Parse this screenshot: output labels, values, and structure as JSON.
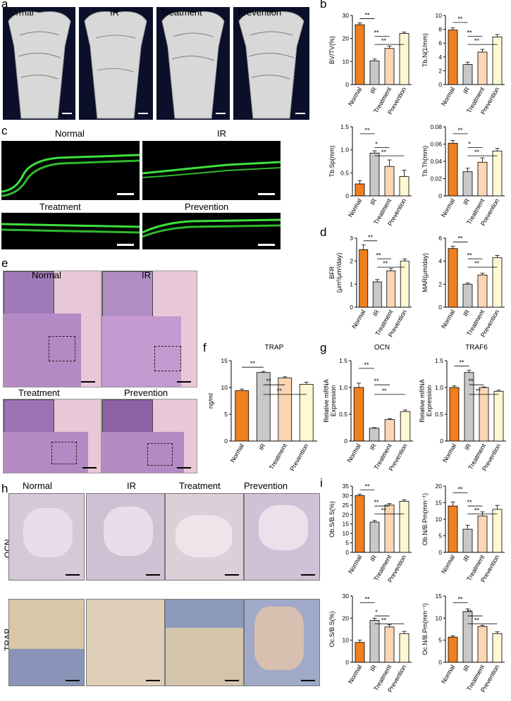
{
  "panel_labels": {
    "a": "a",
    "b": "b",
    "c": "c",
    "d": "d",
    "e": "e",
    "f": "f",
    "g": "g",
    "h": "h",
    "i": "i"
  },
  "groups": [
    "Normal",
    "IR",
    "Treatment",
    "Prevention"
  ],
  "colors": {
    "normal": "#f07f1e",
    "ir": "#c8c8c8",
    "treatment": "#fcd5b4",
    "prevention": "#fdf8d2"
  },
  "micro_ct": {
    "labels": [
      "Normal",
      "IR",
      "Treatment",
      "Prevention"
    ]
  },
  "calcein": {
    "labels": [
      "Normal",
      "IR",
      "Treatment",
      "Prevention"
    ]
  },
  "he": {
    "labels": [
      "Normal",
      "IR",
      "Treatment",
      "Prevention"
    ]
  },
  "ihc": {
    "col_labels": [
      "Normal",
      "IR",
      "Treatment",
      "Prevention"
    ],
    "row_labels": [
      "OCN",
      "TRAP"
    ]
  },
  "chart_data": [
    {
      "id": "bvtv",
      "type": "bar",
      "categories": [
        "Normal",
        "IR",
        "Treatment",
        "Prevention"
      ],
      "values": [
        26,
        10.3,
        15.7,
        22.2
      ],
      "errors": [
        0.8,
        0.8,
        1.0,
        0.6
      ],
      "ylabel": "BV/TV(%)",
      "ylim": [
        0,
        30
      ],
      "yticks": [
        "0",
        "10",
        "20",
        "30"
      ],
      "sig": [
        {
          "from": 0,
          "to": 1,
          "label": "**"
        },
        {
          "from": 1,
          "to": 2,
          "label": "**"
        },
        {
          "from": 1,
          "to": 3,
          "label": "**"
        }
      ]
    },
    {
      "id": "tbn",
      "type": "bar",
      "categories": [
        "Normal",
        "IR",
        "Treatment",
        "Prevention"
      ],
      "values": [
        7.9,
        2.9,
        4.7,
        6.9
      ],
      "errors": [
        0.3,
        0.35,
        0.4,
        0.35
      ],
      "ylabel": "Tb.N(1/mm)",
      "ylim": [
        0,
        10
      ],
      "yticks": [
        "0",
        "2",
        "4",
        "6",
        "8",
        "10"
      ],
      "sig": [
        {
          "from": 0,
          "to": 1,
          "label": "**"
        },
        {
          "from": 1,
          "to": 2,
          "label": "**"
        },
        {
          "from": 1,
          "to": 3,
          "label": "**"
        }
      ]
    },
    {
      "id": "tbsp",
      "type": "bar",
      "categories": [
        "Normal",
        "IR",
        "Treatment",
        "Prevention"
      ],
      "values": [
        0.26,
        0.93,
        0.64,
        0.42
      ],
      "errors": [
        0.07,
        0.05,
        0.14,
        0.14
      ],
      "ylabel": "Tb.Sp(mm)",
      "ylim": [
        0,
        1.5
      ],
      "yticks": [
        "0",
        "0.5",
        "1.0",
        "1.5"
      ],
      "sig": [
        {
          "from": 0,
          "to": 1,
          "label": "**"
        },
        {
          "from": 1,
          "to": 2,
          "label": "*"
        },
        {
          "from": 1,
          "to": 3,
          "label": "**"
        }
      ]
    },
    {
      "id": "tbth",
      "type": "bar",
      "categories": [
        "Normal",
        "IR",
        "Treatment",
        "Prevention"
      ],
      "values": [
        0.061,
        0.028,
        0.039,
        0.052
      ],
      "errors": [
        0.003,
        0.004,
        0.005,
        0.003
      ],
      "ylabel": "Tb.Th(mm)",
      "ylim": [
        0,
        0.08
      ],
      "yticks": [
        "0",
        "0.02",
        "0.04",
        "0.06",
        "0.08"
      ],
      "sig": [
        {
          "from": 0,
          "to": 1,
          "label": "**"
        },
        {
          "from": 1,
          "to": 2,
          "label": "*"
        },
        {
          "from": 1,
          "to": 3,
          "label": "**"
        }
      ]
    },
    {
      "id": "bfr",
      "type": "bar",
      "categories": [
        "Normal",
        "IR",
        "Treatment",
        "Prevention"
      ],
      "values": [
        2.5,
        1.1,
        1.58,
        2.0
      ],
      "errors": [
        0.2,
        0.1,
        0.1,
        0.1
      ],
      "ylabel": "BFR",
      "ylabel2": "(μm³/μm²/day)",
      "ylim": [
        0,
        3
      ],
      "yticks": [
        "0",
        "1",
        "2",
        "3"
      ],
      "sig": [
        {
          "from": 0,
          "to": 1,
          "label": "**"
        },
        {
          "from": 1,
          "to": 2,
          "label": "**"
        },
        {
          "from": 1,
          "to": 3,
          "label": "**"
        }
      ]
    },
    {
      "id": "mar",
      "type": "bar",
      "categories": [
        "Normal",
        "IR",
        "Treatment",
        "Prevention"
      ],
      "values": [
        5.1,
        2.0,
        2.8,
        4.3
      ],
      "errors": [
        0.2,
        0.1,
        0.15,
        0.2
      ],
      "ylabel": "MAR(μm/day)",
      "ylim": [
        0,
        6
      ],
      "yticks": [
        "0",
        "2",
        "4",
        "6"
      ],
      "sig": [
        {
          "from": 0,
          "to": 1,
          "label": "**"
        },
        {
          "from": 1,
          "to": 2,
          "label": "**"
        },
        {
          "from": 1,
          "to": 3,
          "label": "**"
        }
      ]
    },
    {
      "id": "trap",
      "type": "bar",
      "title": "TRAP",
      "categories": [
        "Normal",
        "IR",
        "Treatment",
        "Prevention"
      ],
      "values": [
        9.4,
        12.8,
        11.8,
        10.6
      ],
      "errors": [
        0.3,
        0.2,
        0.2,
        0.4
      ],
      "ylabel": "ng/ml",
      "ylim": [
        0,
        15
      ],
      "yticks": [
        "0",
        "5",
        "10",
        "15"
      ],
      "sig": [
        {
          "from": 0,
          "to": 1,
          "label": "**"
        },
        {
          "from": 1,
          "to": 2,
          "label": "**"
        },
        {
          "from": 1,
          "to": 3,
          "label": "**"
        }
      ]
    },
    {
      "id": "ocn",
      "type": "bar",
      "title": "OCN",
      "categories": [
        "Normal",
        "IR",
        "Treatment",
        "Prevention"
      ],
      "values": [
        1.0,
        0.24,
        0.4,
        0.55
      ],
      "errors": [
        0.08,
        0.01,
        0.02,
        0.03
      ],
      "ylabel": "Relative mRNA",
      "ylabel2": "Expression",
      "ylim": [
        0,
        1.5
      ],
      "yticks": [
        "0",
        "0.5",
        "1.0",
        "1.5"
      ],
      "sig": [
        {
          "from": 0,
          "to": 1,
          "label": "**"
        },
        {
          "from": 1,
          "to": 2,
          "label": "**"
        },
        {
          "from": 1,
          "to": 3,
          "label": "**"
        }
      ]
    },
    {
      "id": "traf6",
      "type": "bar",
      "title": "TRAF6",
      "categories": [
        "Normal",
        "IR",
        "Treatment",
        "Prevention"
      ],
      "values": [
        1.0,
        1.28,
        1.0,
        0.93
      ],
      "errors": [
        0.03,
        0.04,
        0.01,
        0.02
      ],
      "ylabel": "Relative mRNA",
      "ylabel2": "Expression",
      "ylim": [
        0,
        1.5
      ],
      "yticks": [
        "0",
        "0.5",
        "1.0",
        "1.5"
      ],
      "sig": [
        {
          "from": 0,
          "to": 1,
          "label": "**"
        },
        {
          "from": 1,
          "to": 2,
          "label": "**"
        },
        {
          "from": 1,
          "to": 3,
          "label": "**"
        }
      ]
    },
    {
      "id": "obsbs",
      "type": "bar",
      "categories": [
        "Normal",
        "IR",
        "Treatment",
        "Prevention"
      ],
      "values": [
        30,
        16,
        25,
        27
      ],
      "errors": [
        0.8,
        0.8,
        0.8,
        0.8
      ],
      "ylabel": "Ob.S/B.S(%)",
      "ylim": [
        0,
        35
      ],
      "yticks": [
        "0",
        "5",
        "10",
        "15",
        "20",
        "25",
        "30",
        "35"
      ],
      "sig": [
        {
          "from": 0,
          "to": 1,
          "label": "**"
        },
        {
          "from": 1,
          "to": 2,
          "label": "**"
        },
        {
          "from": 1,
          "to": 3,
          "label": "**"
        }
      ]
    },
    {
      "id": "obnbpm",
      "type": "bar",
      "categories": [
        "Normal",
        "IR",
        "Treatment",
        "Prevention"
      ],
      "values": [
        14,
        7,
        11,
        13
      ],
      "errors": [
        1.2,
        1.2,
        1.2,
        1.2
      ],
      "ylabel": "Ob.N/B.Pm(mm⁻¹)",
      "ylim": [
        0,
        20
      ],
      "yticks": [
        "0",
        "5",
        "10",
        "15",
        "20"
      ],
      "sig": [
        {
          "from": 0,
          "to": 1,
          "label": "**"
        },
        {
          "from": 1,
          "to": 2,
          "label": "**"
        },
        {
          "from": 1,
          "to": 3,
          "label": "**"
        }
      ]
    },
    {
      "id": "ocsbs",
      "type": "bar",
      "categories": [
        "Normal",
        "IR",
        "Treatment",
        "Prevention"
      ],
      "values": [
        9,
        19,
        16,
        13
      ],
      "errors": [
        1.0,
        1.0,
        1.0,
        1.0
      ],
      "ylabel": "Oc.S/B.S(%)",
      "ylim": [
        0,
        30
      ],
      "yticks": [
        "0",
        "10",
        "20",
        "30"
      ],
      "sig": [
        {
          "from": 0,
          "to": 1,
          "label": "**"
        },
        {
          "from": 1,
          "to": 2,
          "label": "*"
        },
        {
          "from": 1,
          "to": 3,
          "label": "**"
        }
      ]
    },
    {
      "id": "ocnbpm",
      "type": "bar",
      "categories": [
        "Normal",
        "IR",
        "Treatment",
        "Prevention"
      ],
      "values": [
        5.7,
        11.5,
        8.1,
        6.5
      ],
      "errors": [
        0.3,
        0.6,
        0.3,
        0.4
      ],
      "ylabel": "Oc.N/B.Pm(mm⁻¹)",
      "ylim": [
        0,
        15
      ],
      "yticks": [
        "0",
        "5",
        "10",
        "15"
      ],
      "sig": [
        {
          "from": 0,
          "to": 1,
          "label": "**"
        },
        {
          "from": 1,
          "to": 2,
          "label": "**"
        },
        {
          "from": 1,
          "to": 3,
          "label": "**"
        }
      ]
    }
  ]
}
